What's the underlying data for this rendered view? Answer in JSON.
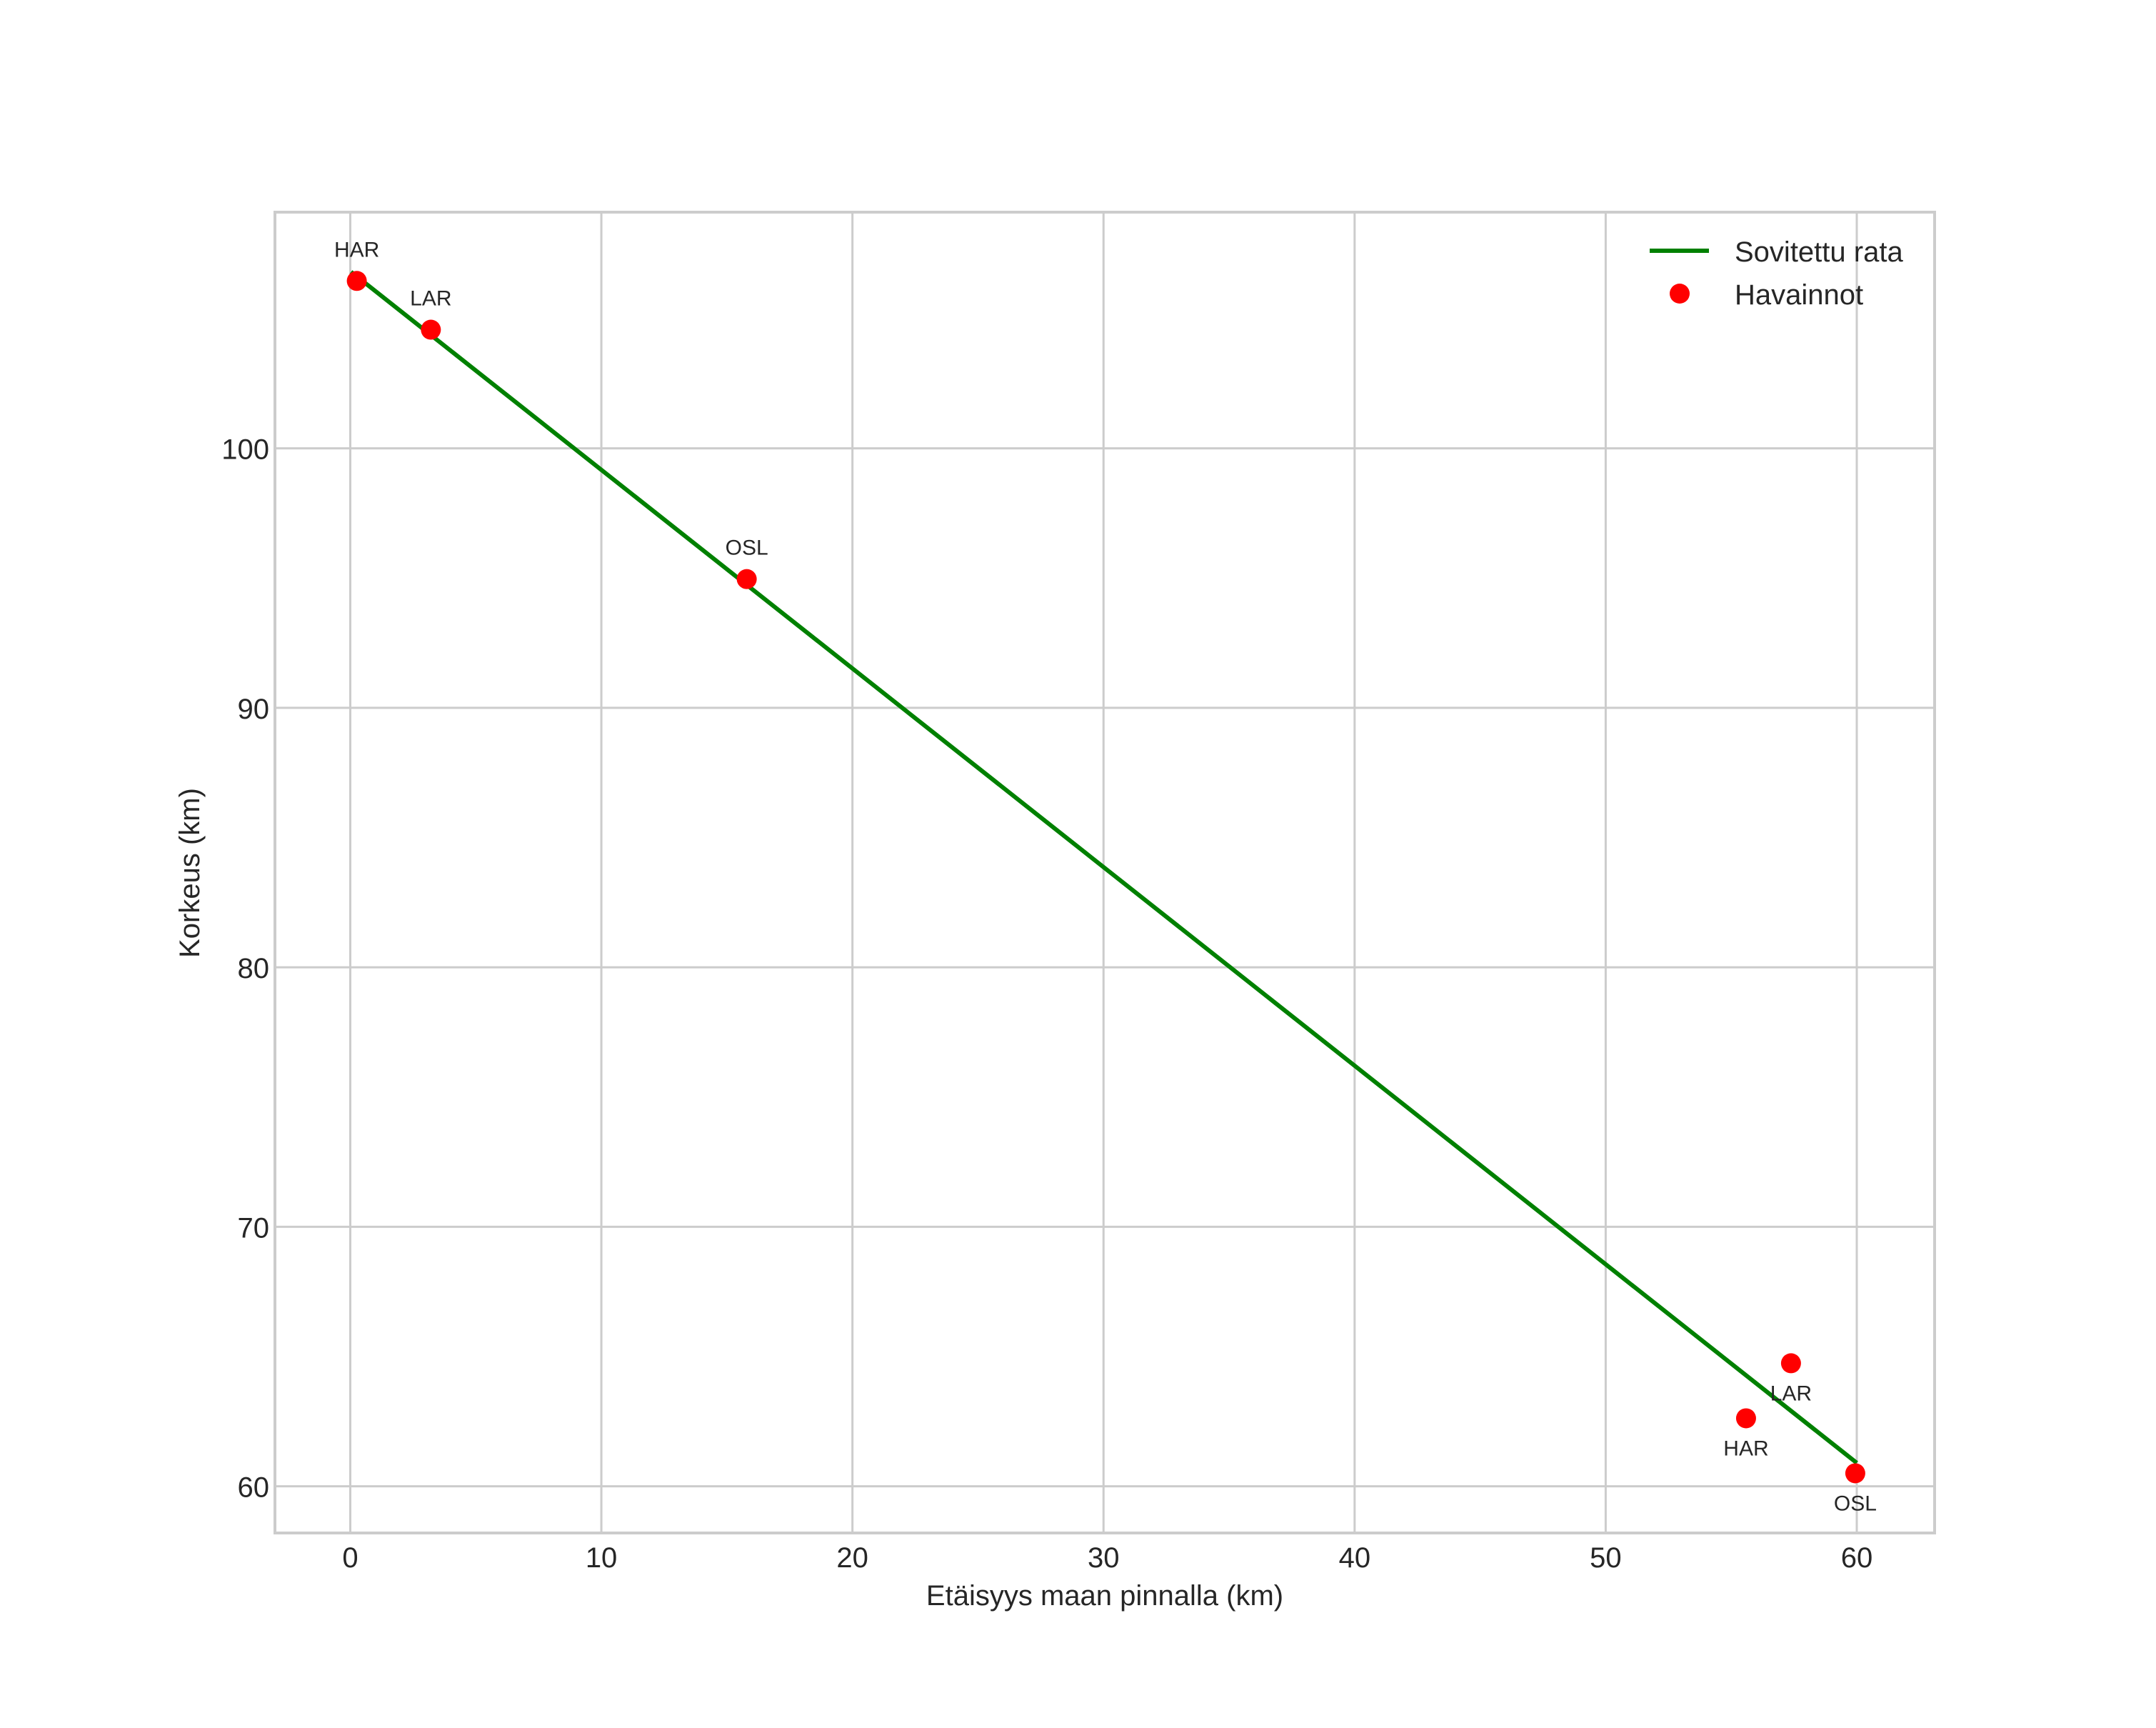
{
  "chart_data": {
    "type": "scatter",
    "title": "",
    "xlabel": "Etäisyys maan pinnalla (km)",
    "ylabel": "Korkeus (km)",
    "xlim": [
      -3.0,
      63.1
    ],
    "ylim": [
      58.2,
      109.1
    ],
    "xticks": [
      0,
      10,
      20,
      30,
      40,
      50,
      60
    ],
    "yticks": [
      60,
      70,
      80,
      90,
      100
    ],
    "grid": true,
    "legend_position": "upper right",
    "series": [
      {
        "name": "Sovitettu rata",
        "type": "line",
        "color": "#008000",
        "x": [
          0.03,
          60.0
        ],
        "y": [
          106.8,
          60.9
        ]
      },
      {
        "name": "Havainnot",
        "type": "scatter",
        "color": "#ff0000",
        "points": [
          {
            "label": "HAR",
            "x": 0.26,
            "y": 106.45,
            "label_pos": "above"
          },
          {
            "label": "LAR",
            "x": 3.21,
            "y": 104.57,
            "label_pos": "above"
          },
          {
            "label": "OSL",
            "x": 15.79,
            "y": 94.96,
            "label_pos": "above"
          },
          {
            "label": "HAR",
            "x": 55.59,
            "y": 62.62,
            "label_pos": "below"
          },
          {
            "label": "LAR",
            "x": 57.38,
            "y": 64.74,
            "label_pos": "below"
          },
          {
            "label": "OSL",
            "x": 59.94,
            "y": 60.5,
            "label_pos": "below"
          }
        ]
      }
    ]
  },
  "legend": {
    "items": [
      {
        "label": "Sovitettu rata",
        "marker": "line",
        "color": "#008000"
      },
      {
        "label": "Havainnot",
        "marker": "dot",
        "color": "#ff0000"
      }
    ]
  },
  "style": {
    "grid_color": "#cccccc",
    "spine_color": "#cccccc",
    "text_color": "#262626",
    "background": "#ffffff"
  }
}
